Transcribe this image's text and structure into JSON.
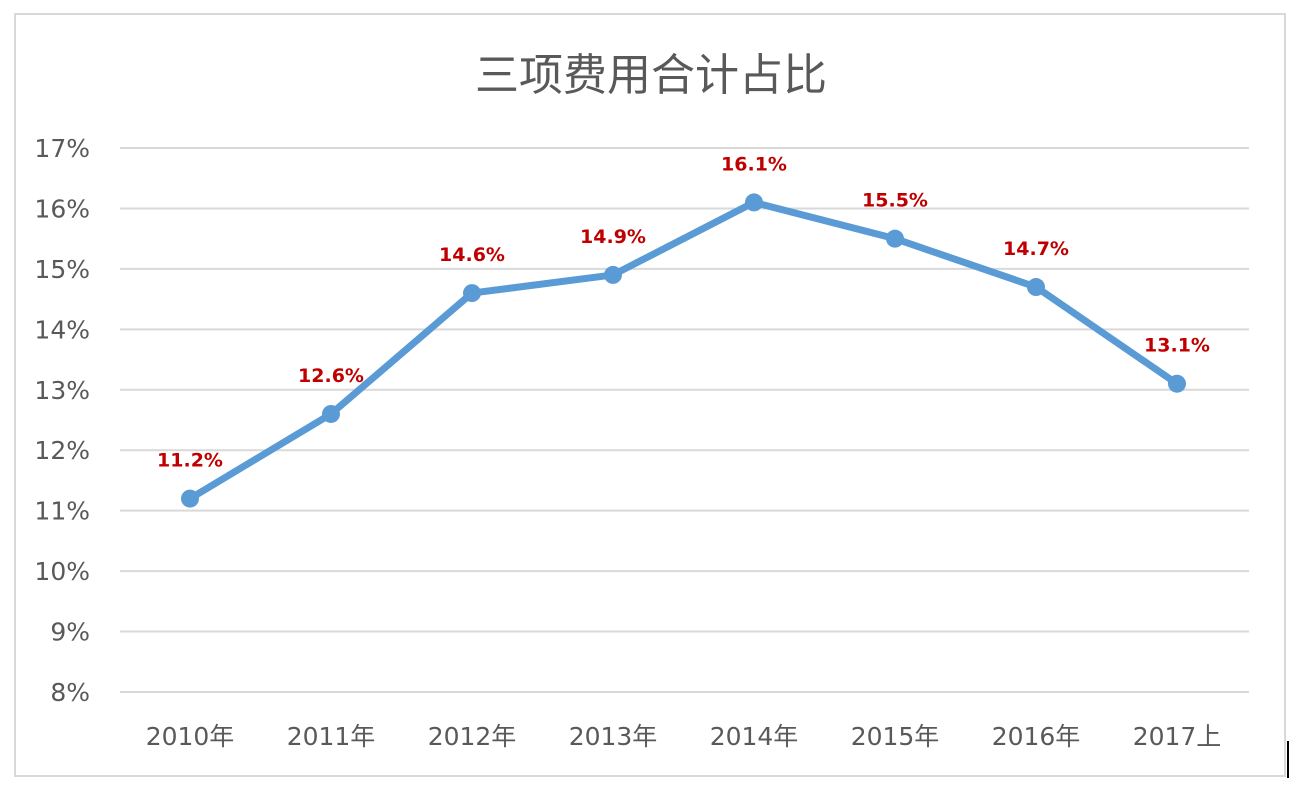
{
  "chart_data": {
    "type": "line",
    "title": "三项费用合计占比",
    "xlabel": "",
    "ylabel": "",
    "categories": [
      "2010年",
      "2011年",
      "2012年",
      "2013年",
      "2014年",
      "2015年",
      "2016年",
      "2017上"
    ],
    "series": [
      {
        "values": [
          11.2,
          12.6,
          14.6,
          14.9,
          16.1,
          15.5,
          14.7,
          13.1
        ],
        "data_labels": [
          "11.2%",
          "12.6%",
          "14.6%",
          "14.9%",
          "16.1%",
          "15.5%",
          "14.7%",
          "13.1%"
        ]
      }
    ],
    "ylim": [
      8,
      17
    ],
    "y_ticks": [
      8,
      9,
      10,
      11,
      12,
      13,
      14,
      15,
      16,
      17
    ],
    "y_tick_labels": [
      "8%",
      "9%",
      "10%",
      "11%",
      "12%",
      "13%",
      "14%",
      "15%",
      "16%",
      "17%"
    ],
    "grid": true,
    "legend": "none",
    "colors": {
      "line": "#5b9bd5",
      "data_label": "#c00000",
      "grid": "#d9d9d9",
      "text": "#595959"
    }
  }
}
